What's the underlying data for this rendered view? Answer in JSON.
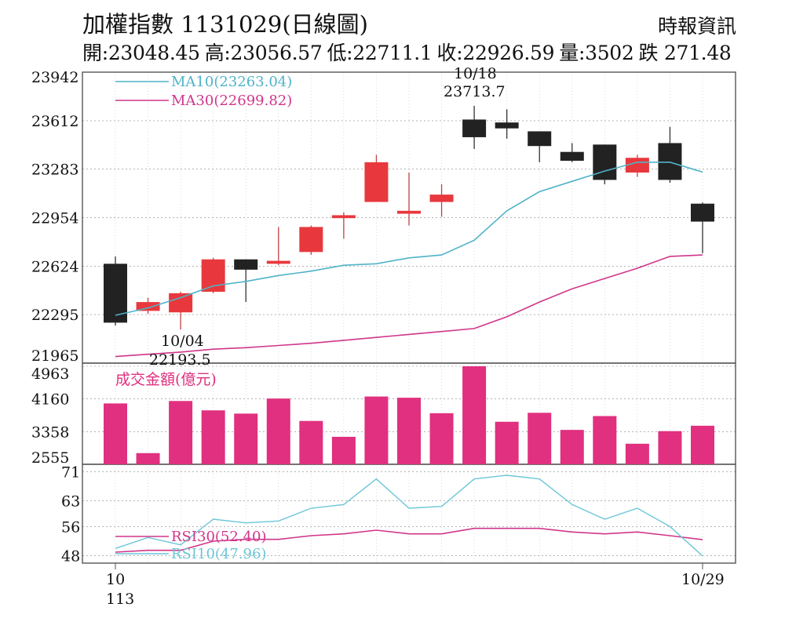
{
  "header": {
    "title": "加權指數 1131029(日線圖)",
    "source": "時報資訊",
    "ohlc": {
      "open": "開:23048.45",
      "high": "高:23056.57",
      "low": "低:22711.1",
      "close": "收:22926.59",
      "volume": "量:3502",
      "change": "跌 271.48"
    }
  },
  "colors": {
    "up": "#e8383d",
    "down": "#222222",
    "ma10": "#4fb3c8",
    "ma30": "#d0368a",
    "volume": "#e0307f",
    "rsi10": "#6cc6d8",
    "rsi30": "#d0368a",
    "grid": "#888888",
    "frame": "#555555"
  },
  "chart_data": [
    {
      "type": "candlestick",
      "ylim": [
        21965,
        23942
      ],
      "y_ticks": [
        "23942",
        "23612",
        "23283",
        "22954",
        "22624",
        "22295",
        "21965"
      ],
      "x_labels": {
        "start": "10",
        "start_sub": "113",
        "end": "10/29"
      },
      "candles": [
        {
          "o": 22640,
          "h": 22690,
          "l": 22220,
          "c": 22240
        },
        {
          "o": 22320,
          "h": 22410,
          "l": 22300,
          "c": 22380
        },
        {
          "o": 22310,
          "h": 22450,
          "l": 22193.5,
          "c": 22440
        },
        {
          "o": 22450,
          "h": 22680,
          "l": 22440,
          "c": 22670
        },
        {
          "o": 22670,
          "h": 22670,
          "l": 22380,
          "c": 22600
        },
        {
          "o": 22640,
          "h": 22890,
          "l": 22630,
          "c": 22660
        },
        {
          "o": 22720,
          "h": 22900,
          "l": 22700,
          "c": 22890
        },
        {
          "o": 22950,
          "h": 22990,
          "l": 22810,
          "c": 22970
        },
        {
          "o": 23060,
          "h": 23380,
          "l": 23060,
          "c": 23330
        },
        {
          "o": 22980,
          "h": 23260,
          "l": 22900,
          "c": 23000
        },
        {
          "o": 23060,
          "h": 23180,
          "l": 22960,
          "c": 23110
        },
        {
          "o": 23620,
          "h": 23713.7,
          "l": 23420,
          "c": 23500
        },
        {
          "o": 23600,
          "h": 23690,
          "l": 23490,
          "c": 23560
        },
        {
          "o": 23540,
          "h": 23540,
          "l": 23330,
          "c": 23440
        },
        {
          "o": 23400,
          "h": 23460,
          "l": 23330,
          "c": 23340
        },
        {
          "o": 23450,
          "h": 23450,
          "l": 23180,
          "c": 23210
        },
        {
          "o": 23260,
          "h": 23380,
          "l": 23230,
          "c": 23360
        },
        {
          "o": 23460,
          "h": 23570,
          "l": 23190,
          "c": 23210
        },
        {
          "o": 23048.45,
          "h": 23056.57,
          "l": 22711.1,
          "c": 22926.59
        }
      ],
      "ma10": [
        22290,
        22340,
        22410,
        22490,
        22520,
        22560,
        22590,
        22630,
        22640,
        22680,
        22700,
        22800,
        23000,
        23130,
        23200,
        23270,
        23330,
        23330,
        23263.04
      ],
      "ma30": [
        22010,
        22025,
        22040,
        22060,
        22070,
        22085,
        22100,
        22120,
        22140,
        22160,
        22180,
        22200,
        22280,
        22380,
        22470,
        22540,
        22610,
        22690,
        22699.82
      ],
      "ma10_label": "MA10(23263.04)",
      "ma30_label": "MA30(22699.82)",
      "annotations": {
        "high_date": "10/18",
        "high_value": "23713.7",
        "low_date": "10/04",
        "low_value": "22193.5"
      }
    },
    {
      "type": "bar",
      "title": "成交金額(億元)",
      "ylim": [
        2555,
        4963
      ],
      "y_ticks": [
        "4963",
        "4160",
        "3358",
        "2555"
      ],
      "values": [
        4050,
        2830,
        4110,
        3880,
        3800,
        4170,
        3620,
        3230,
        4220,
        4190,
        3810,
        4963,
        3600,
        3820,
        3400,
        3740,
        3060,
        3370,
        3502
      ]
    },
    {
      "type": "line",
      "ylim": [
        46,
        73
      ],
      "y_ticks": [
        "71",
        "63",
        "56",
        "48"
      ],
      "series": [
        {
          "name": "RSI10(47.96)",
          "values": [
            50,
            53,
            51,
            58,
            57,
            57.5,
            61,
            62,
            69,
            61,
            61.5,
            69,
            70,
            69,
            62,
            58,
            61,
            56,
            47.96
          ]
        },
        {
          "name": "RSI30(52.40)",
          "values": [
            49,
            49.5,
            49.5,
            52,
            52.5,
            52.5,
            53.5,
            54,
            55,
            54,
            54,
            55.5,
            55.5,
            55.5,
            54.5,
            54,
            54.5,
            53.5,
            52.4
          ]
        }
      ]
    }
  ]
}
